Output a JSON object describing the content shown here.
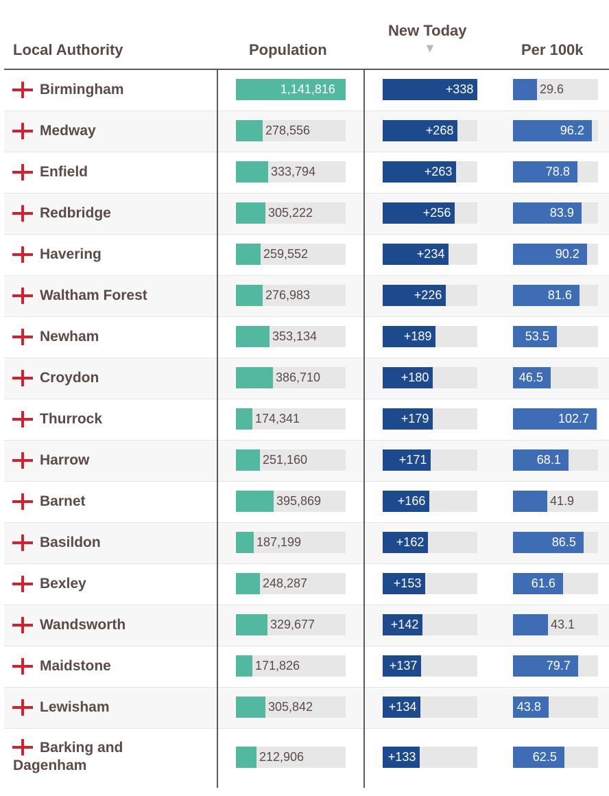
{
  "headers": {
    "authority": "Local Authority",
    "population": "Population",
    "new_today": "New Today",
    "sort_arrow": "▼",
    "per_100k": "Per 100k"
  },
  "colors": {
    "population_bar": "#52b9a0",
    "new_today_bar": "#1d4a8c",
    "per_100k_bar": "#3f6db5",
    "track": "#e7e7e7",
    "flag": "#d4202c"
  },
  "chart_data": {
    "type": "table",
    "columns": [
      "Local Authority",
      "Population",
      "New Today",
      "Per 100k"
    ],
    "scales": {
      "population_max": 1141816,
      "new_today_max": 338,
      "per_100k_max": 104
    },
    "rows": [
      {
        "name": "Birmingham",
        "population": 1141816,
        "population_label": "1,141,816",
        "new_today": 338,
        "new_today_label": "+338",
        "per_100k": 29.6,
        "per_100k_label": "29.6"
      },
      {
        "name": "Medway",
        "population": 278556,
        "population_label": "278,556",
        "new_today": 268,
        "new_today_label": "+268",
        "per_100k": 96.2,
        "per_100k_label": "96.2"
      },
      {
        "name": "Enfield",
        "population": 333794,
        "population_label": "333,794",
        "new_today": 263,
        "new_today_label": "+263",
        "per_100k": 78.8,
        "per_100k_label": "78.8"
      },
      {
        "name": "Redbridge",
        "population": 305222,
        "population_label": "305,222",
        "new_today": 256,
        "new_today_label": "+256",
        "per_100k": 83.9,
        "per_100k_label": "83.9"
      },
      {
        "name": "Havering",
        "population": 259552,
        "population_label": "259,552",
        "new_today": 234,
        "new_today_label": "+234",
        "per_100k": 90.2,
        "per_100k_label": "90.2"
      },
      {
        "name": "Waltham Forest",
        "population": 276983,
        "population_label": "276,983",
        "new_today": 226,
        "new_today_label": "+226",
        "per_100k": 81.6,
        "per_100k_label": "81.6"
      },
      {
        "name": "Newham",
        "population": 353134,
        "population_label": "353,134",
        "new_today": 189,
        "new_today_label": "+189",
        "per_100k": 53.5,
        "per_100k_label": "53.5"
      },
      {
        "name": "Croydon",
        "population": 386710,
        "population_label": "386,710",
        "new_today": 180,
        "new_today_label": "+180",
        "per_100k": 46.5,
        "per_100k_label": "46.5"
      },
      {
        "name": "Thurrock",
        "population": 174341,
        "population_label": "174,341",
        "new_today": 179,
        "new_today_label": "+179",
        "per_100k": 102.7,
        "per_100k_label": "102.7"
      },
      {
        "name": "Harrow",
        "population": 251160,
        "population_label": "251,160",
        "new_today": 171,
        "new_today_label": "+171",
        "per_100k": 68.1,
        "per_100k_label": "68.1"
      },
      {
        "name": "Barnet",
        "population": 395869,
        "population_label": "395,869",
        "new_today": 166,
        "new_today_label": "+166",
        "per_100k": 41.9,
        "per_100k_label": "41.9"
      },
      {
        "name": "Basildon",
        "population": 187199,
        "population_label": "187,199",
        "new_today": 162,
        "new_today_label": "+162",
        "per_100k": 86.5,
        "per_100k_label": "86.5"
      },
      {
        "name": "Bexley",
        "population": 248287,
        "population_label": "248,287",
        "new_today": 153,
        "new_today_label": "+153",
        "per_100k": 61.6,
        "per_100k_label": "61.6"
      },
      {
        "name": "Wandsworth",
        "population": 329677,
        "population_label": "329,677",
        "new_today": 142,
        "new_today_label": "+142",
        "per_100k": 43.1,
        "per_100k_label": "43.1"
      },
      {
        "name": "Maidstone",
        "population": 171826,
        "population_label": "171,826",
        "new_today": 137,
        "new_today_label": "+137",
        "per_100k": 79.7,
        "per_100k_label": "79.7"
      },
      {
        "name": "Lewisham",
        "population": 305842,
        "population_label": "305,842",
        "new_today": 134,
        "new_today_label": "+134",
        "per_100k": 43.8,
        "per_100k_label": "43.8"
      },
      {
        "name": "Barking and Dagenham",
        "population": 212906,
        "population_label": "212,906",
        "new_today": 133,
        "new_today_label": "+133",
        "per_100k": 62.5,
        "per_100k_label": "62.5"
      }
    ]
  }
}
